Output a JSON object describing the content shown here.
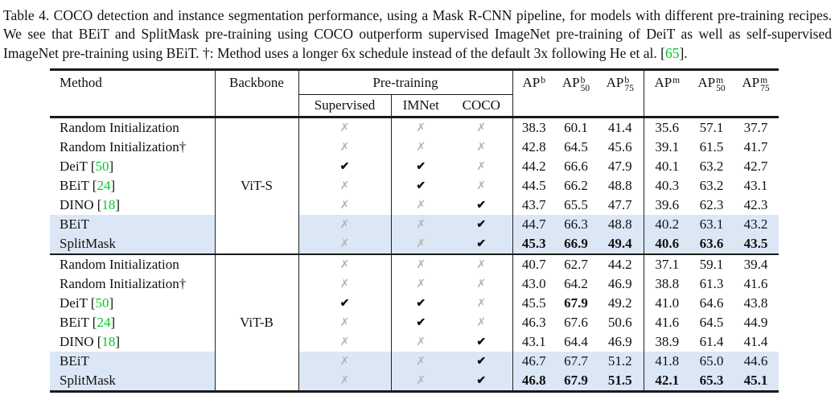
{
  "colors": {
    "citation_green": "#00cc22",
    "highlight_blue": "#dce7f6",
    "cross_gray": "#b3b3b3",
    "rule_black": "#1a1a1a"
  },
  "icons": {
    "check": "✔",
    "cross": "✗"
  },
  "caption": {
    "part1": "Table 4. COCO detection and instance segmentation performance, using a Mask R-CNN pipeline, for models with different pre-training recipes. We see that BEiT and SplitMask pre-training using COCO outperform supervised ImageNet pre-training of DeiT as well as self-supervised ImageNet pre-training using BEiT. †: Method uses a longer 6x schedule instead of the default 3x following He et al. [",
    "ref": "65",
    "part2": "]."
  },
  "table": {
    "headers": {
      "method": "Method",
      "backbone": "Backbone",
      "pretraining": "Pre-training",
      "pretraining_sub": [
        "Supervised",
        "IMNet",
        "COCO"
      ],
      "metrics": [
        {
          "base": "AP",
          "sup": "b",
          "sub": ""
        },
        {
          "base": "AP",
          "sup": "b",
          "sub": "50"
        },
        {
          "base": "AP",
          "sup": "b",
          "sub": "75"
        },
        {
          "base": "AP",
          "sup": "m",
          "sub": ""
        },
        {
          "base": "AP",
          "sup": "m",
          "sub": "50"
        },
        {
          "base": "AP",
          "sup": "m",
          "sub": "75"
        }
      ]
    },
    "sections": [
      {
        "backbone": "ViT-S",
        "rows": [
          {
            "method": "Random Initialization",
            "ref": null,
            "checks": [
              false,
              false,
              false
            ],
            "values": [
              "38.3",
              "60.1",
              "41.4",
              "35.6",
              "57.1",
              "37.7"
            ],
            "bold": [
              false,
              false,
              false,
              false,
              false,
              false
            ],
            "highlight": false
          },
          {
            "method": "Random Initialization†",
            "ref": null,
            "checks": [
              false,
              false,
              false
            ],
            "values": [
              "42.8",
              "64.5",
              "45.6",
              "39.1",
              "61.5",
              "41.7"
            ],
            "bold": [
              false,
              false,
              false,
              false,
              false,
              false
            ],
            "highlight": false
          },
          {
            "method": "DeiT",
            "ref": "50",
            "checks": [
              true,
              true,
              false
            ],
            "values": [
              "44.2",
              "66.6",
              "47.9",
              "40.1",
              "63.2",
              "42.7"
            ],
            "bold": [
              false,
              false,
              false,
              false,
              false,
              false
            ],
            "highlight": false
          },
          {
            "method": "BEiT",
            "ref": "24",
            "checks": [
              false,
              true,
              false
            ],
            "values": [
              "44.5",
              "66.2",
              "48.8",
              "40.3",
              "63.2",
              "43.1"
            ],
            "bold": [
              false,
              false,
              false,
              false,
              false,
              false
            ],
            "highlight": false
          },
          {
            "method": "DINO",
            "ref": "18",
            "checks": [
              false,
              false,
              true
            ],
            "values": [
              "43.7",
              "65.5",
              "47.7",
              "39.6",
              "62.3",
              "42.3"
            ],
            "bold": [
              false,
              false,
              false,
              false,
              false,
              false
            ],
            "highlight": false
          },
          {
            "method": "BEiT",
            "ref": null,
            "checks": [
              false,
              false,
              true
            ],
            "values": [
              "44.7",
              "66.3",
              "48.8",
              "40.2",
              "63.1",
              "43.2"
            ],
            "bold": [
              false,
              false,
              false,
              false,
              false,
              false
            ],
            "highlight": true
          },
          {
            "method": "SplitMask",
            "ref": null,
            "checks": [
              false,
              false,
              true
            ],
            "values": [
              "45.3",
              "66.9",
              "49.4",
              "40.6",
              "63.6",
              "43.5"
            ],
            "bold": [
              true,
              true,
              true,
              true,
              true,
              true
            ],
            "highlight": true
          }
        ]
      },
      {
        "backbone": "ViT-B",
        "rows": [
          {
            "method": "Random Initialization",
            "ref": null,
            "checks": [
              false,
              false,
              false
            ],
            "values": [
              "40.7",
              "62.7",
              "44.2",
              "37.1",
              "59.1",
              "39.4"
            ],
            "bold": [
              false,
              false,
              false,
              false,
              false,
              false
            ],
            "highlight": false
          },
          {
            "method": "Random Initialization†",
            "ref": null,
            "checks": [
              false,
              false,
              false
            ],
            "values": [
              "43.0",
              "64.2",
              "46.9",
              "38.8",
              "61.3",
              "41.6"
            ],
            "bold": [
              false,
              false,
              false,
              false,
              false,
              false
            ],
            "highlight": false
          },
          {
            "method": "DeiT",
            "ref": "50",
            "checks": [
              true,
              true,
              false
            ],
            "values": [
              "45.5",
              "67.9",
              "49.2",
              "41.0",
              "64.6",
              "43.8"
            ],
            "bold": [
              false,
              true,
              false,
              false,
              false,
              false
            ],
            "highlight": false
          },
          {
            "method": "BEiT",
            "ref": "24",
            "checks": [
              false,
              true,
              false
            ],
            "values": [
              "46.3",
              "67.6",
              "50.6",
              "41.6",
              "64.5",
              "44.9"
            ],
            "bold": [
              false,
              false,
              false,
              false,
              false,
              false
            ],
            "highlight": false
          },
          {
            "method": "DINO",
            "ref": "18",
            "checks": [
              false,
              false,
              true
            ],
            "values": [
              "43.1",
              "64.4",
              "46.9",
              "38.9",
              "61.4",
              "41.4"
            ],
            "bold": [
              false,
              false,
              false,
              false,
              false,
              false
            ],
            "highlight": false
          },
          {
            "method": "BEiT",
            "ref": null,
            "checks": [
              false,
              false,
              true
            ],
            "values": [
              "46.7",
              "67.7",
              "51.2",
              "41.8",
              "65.0",
              "44.6"
            ],
            "bold": [
              false,
              false,
              false,
              false,
              false,
              false
            ],
            "highlight": true
          },
          {
            "method": "SplitMask",
            "ref": null,
            "checks": [
              false,
              false,
              true
            ],
            "values": [
              "46.8",
              "67.9",
              "51.5",
              "42.1",
              "65.3",
              "45.1"
            ],
            "bold": [
              true,
              true,
              true,
              true,
              true,
              true
            ],
            "highlight": true
          }
        ]
      }
    ]
  }
}
